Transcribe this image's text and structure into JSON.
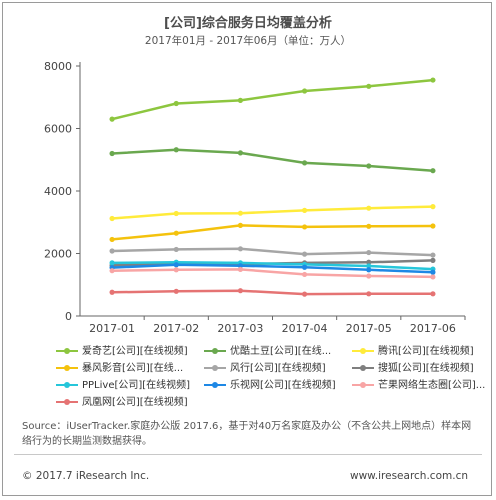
{
  "header": {
    "title": "[公司]综合服务日均覆盖分析",
    "subtitle": "2017年01月 - 2017年06月（单位：万人）"
  },
  "chart_data": {
    "type": "line",
    "title": "[公司]综合服务日均覆盖分析",
    "subtitle": "2017年01月 - 2017年06月（单位：万人）",
    "categories": [
      "2017-01",
      "2017-02",
      "2017-03",
      "2017-04",
      "2017-05",
      "2017-06"
    ],
    "ylim": [
      0,
      8000
    ],
    "yticks": [
      0,
      2000,
      4000,
      6000,
      8000
    ],
    "grid": false,
    "legend_position": "bottom",
    "series": [
      {
        "name": "爱奇艺[公司][在线视频]",
        "color": "#8dc63f",
        "values": [
          6300,
          6800,
          6900,
          7200,
          7350,
          7550
        ]
      },
      {
        "name": "优酷土豆[公司][在线...",
        "color": "#6aa84f",
        "values": [
          5200,
          5320,
          5220,
          4900,
          4800,
          4650
        ]
      },
      {
        "name": "腾讯[公司][在线视频]",
        "color": "#ffeb3b",
        "values": [
          3120,
          3280,
          3290,
          3380,
          3450,
          3500
        ]
      },
      {
        "name": "暴风影音[公司][在线...",
        "color": "#f4c20d",
        "values": [
          2450,
          2650,
          2900,
          2850,
          2870,
          2880
        ]
      },
      {
        "name": "风行[公司][在线视频]",
        "color": "#a6a6a6",
        "values": [
          2080,
          2130,
          2150,
          1980,
          2030,
          1950
        ]
      },
      {
        "name": "搜狐[公司][在线视频]",
        "color": "#7f7f7f",
        "values": [
          1620,
          1700,
          1660,
          1700,
          1720,
          1780
        ]
      },
      {
        "name": "PPLive[公司][在线视频]",
        "color": "#26c6da",
        "values": [
          1700,
          1720,
          1700,
          1650,
          1600,
          1500
        ]
      },
      {
        "name": "乐视网[公司][在线视频]",
        "color": "#1e88e5",
        "values": [
          1550,
          1640,
          1610,
          1560,
          1480,
          1400
        ]
      },
      {
        "name": "芒果网络生态圈[公司]...",
        "color": "#f8a5a5",
        "values": [
          1450,
          1480,
          1490,
          1330,
          1280,
          1250
        ]
      },
      {
        "name": "凤凰网[公司][在线视频]",
        "color": "#e57373",
        "values": [
          760,
          790,
          810,
          700,
          710,
          710
        ]
      }
    ]
  },
  "footer": {
    "source": "Source：iUserTracker.家庭办公版 2017.6，基于对40万名家庭及办公（不含公共上网地点）样本网络行为的长期监测数据获得。",
    "copyright": "© 2017.7 iResearch Inc.",
    "website": "www.iresearch.com.cn"
  }
}
